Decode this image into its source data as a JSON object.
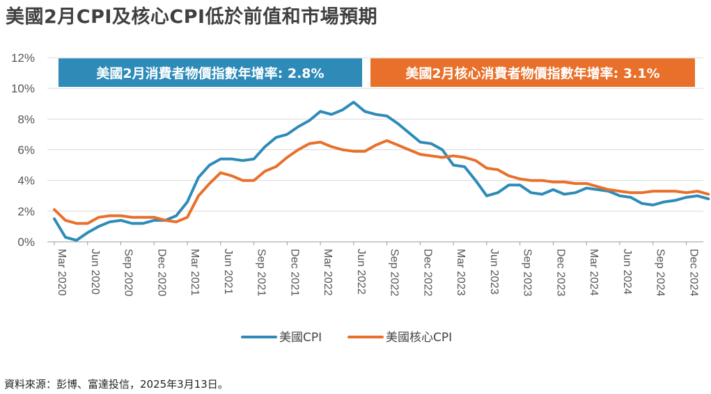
{
  "title": "美國2月CPI及核心CPI低於前值和市場預期",
  "source": "資料來源：彭博、富達投信，2025年3月13日。",
  "colors": {
    "cpi": "#2e8bb8",
    "core": "#e8702a",
    "grid": "#d9d9d9",
    "axis": "#999999"
  },
  "annotations": [
    {
      "text": "美國2月消費者物價指數年增率: 2.8%",
      "series": "cpi"
    },
    {
      "text": "美國2月核心消費者物價指數年增率: 3.1%",
      "series": "core"
    }
  ],
  "chart_data": {
    "type": "line",
    "ylim": [
      0,
      12
    ],
    "yticks": [
      0,
      2,
      4,
      6,
      8,
      10,
      12
    ],
    "ytick_labels": [
      "0%",
      "2%",
      "4%",
      "6%",
      "8%",
      "10%",
      "12%"
    ],
    "x": [
      "2020-03",
      "2020-04",
      "2020-05",
      "2020-06",
      "2020-07",
      "2020-08",
      "2020-09",
      "2020-10",
      "2020-11",
      "2020-12",
      "2021-01",
      "2021-02",
      "2021-03",
      "2021-04",
      "2021-05",
      "2021-06",
      "2021-07",
      "2021-08",
      "2021-09",
      "2021-10",
      "2021-11",
      "2021-12",
      "2022-01",
      "2022-02",
      "2022-03",
      "2022-04",
      "2022-05",
      "2022-06",
      "2022-07",
      "2022-08",
      "2022-09",
      "2022-10",
      "2022-11",
      "2022-12",
      "2023-01",
      "2023-02",
      "2023-03",
      "2023-04",
      "2023-05",
      "2023-06",
      "2023-07",
      "2023-08",
      "2023-09",
      "2023-10",
      "2023-11",
      "2023-12",
      "2024-01",
      "2024-02",
      "2024-03",
      "2024-04",
      "2024-05",
      "2024-06",
      "2024-07",
      "2024-08",
      "2024-09",
      "2024-10",
      "2024-11",
      "2024-12",
      "2025-01",
      "2025-02"
    ],
    "xtick_labels": [
      "Mar 2020",
      "Jun 2020",
      "Sep 2020",
      "Dec 2020",
      "Mar 2021",
      "Jun 2021",
      "Sep 2021",
      "Dec 2021",
      "Mar 2022",
      "Jun 2022",
      "Sep 2022",
      "Dec 2022",
      "Mar 2023",
      "Jun 2023",
      "Sep 2023",
      "Dec 2023",
      "Mar 2024",
      "Jun 2024",
      "Sep 2024",
      "Dec 2024"
    ],
    "series": [
      {
        "name": "美國CPI",
        "key": "cpi",
        "values": [
          1.5,
          0.3,
          0.1,
          0.6,
          1.0,
          1.3,
          1.4,
          1.2,
          1.2,
          1.4,
          1.4,
          1.7,
          2.6,
          4.2,
          5.0,
          5.4,
          5.4,
          5.3,
          5.4,
          6.2,
          6.8,
          7.0,
          7.5,
          7.9,
          8.5,
          8.3,
          8.6,
          9.1,
          8.5,
          8.3,
          8.2,
          7.7,
          7.1,
          6.5,
          6.4,
          6.0,
          5.0,
          4.9,
          4.0,
          3.0,
          3.2,
          3.7,
          3.7,
          3.2,
          3.1,
          3.4,
          3.1,
          3.2,
          3.5,
          3.4,
          3.3,
          3.0,
          2.9,
          2.5,
          2.4,
          2.6,
          2.7,
          2.9,
          3.0,
          2.8
        ]
      },
      {
        "name": "美國核心CPI",
        "key": "core",
        "values": [
          2.1,
          1.4,
          1.2,
          1.2,
          1.6,
          1.7,
          1.7,
          1.6,
          1.6,
          1.6,
          1.4,
          1.3,
          1.6,
          3.0,
          3.8,
          4.5,
          4.3,
          4.0,
          4.0,
          4.6,
          4.9,
          5.5,
          6.0,
          6.4,
          6.5,
          6.2,
          6.0,
          5.9,
          5.9,
          6.3,
          6.6,
          6.3,
          6.0,
          5.7,
          5.6,
          5.5,
          5.6,
          5.5,
          5.3,
          4.8,
          4.7,
          4.3,
          4.1,
          4.0,
          4.0,
          3.9,
          3.9,
          3.8,
          3.8,
          3.6,
          3.4,
          3.3,
          3.2,
          3.2,
          3.3,
          3.3,
          3.3,
          3.2,
          3.3,
          3.1
        ]
      }
    ],
    "grid": true,
    "legend_position": "bottom"
  }
}
